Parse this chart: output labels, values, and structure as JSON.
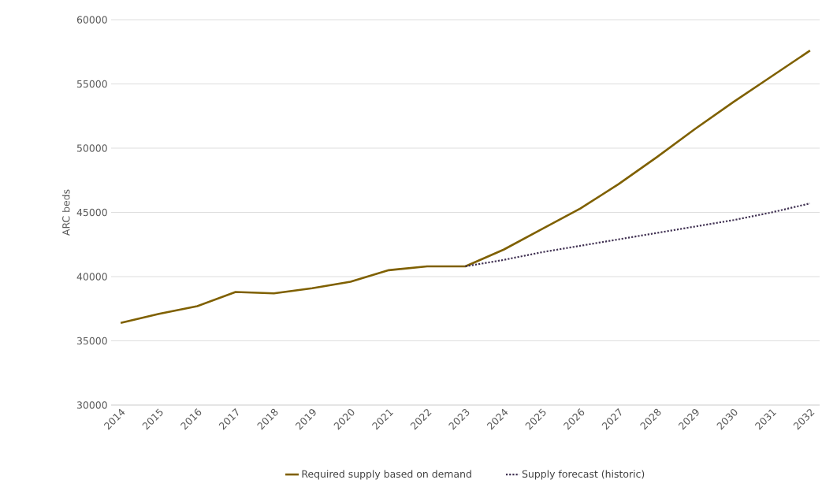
{
  "chart_data": {
    "type": "line",
    "ylabel": "ARC beds",
    "categories": [
      "2014",
      "2015",
      "2016",
      "2017",
      "2018",
      "2019",
      "2020",
      "2021",
      "2022",
      "2023",
      "2024",
      "2025",
      "2026",
      "2027",
      "2028",
      "2029",
      "2030",
      "2031",
      "2032"
    ],
    "series": [
      {
        "name": "Required supply based on demand",
        "color": "#7f6000",
        "line_style": "solid",
        "values": [
          36400,
          37100,
          37700,
          38800,
          38700,
          39100,
          39600,
          40500,
          40800,
          40800,
          42100,
          43700,
          45300,
          47200,
          49300,
          51500,
          53600,
          55600,
          57600
        ]
      },
      {
        "name": "Supply forecast (historic)",
        "color": "#403152",
        "line_style": "dotted",
        "values": [
          null,
          null,
          null,
          null,
          null,
          null,
          null,
          null,
          null,
          40800,
          41300,
          41900,
          42400,
          42900,
          43400,
          43900,
          44400,
          45000,
          45700
        ]
      }
    ],
    "ylim": [
      30000,
      60000
    ],
    "yticks": [
      30000,
      35000,
      40000,
      45000,
      50000,
      55000,
      60000
    ],
    "grid": "y",
    "legend": "bottom"
  }
}
